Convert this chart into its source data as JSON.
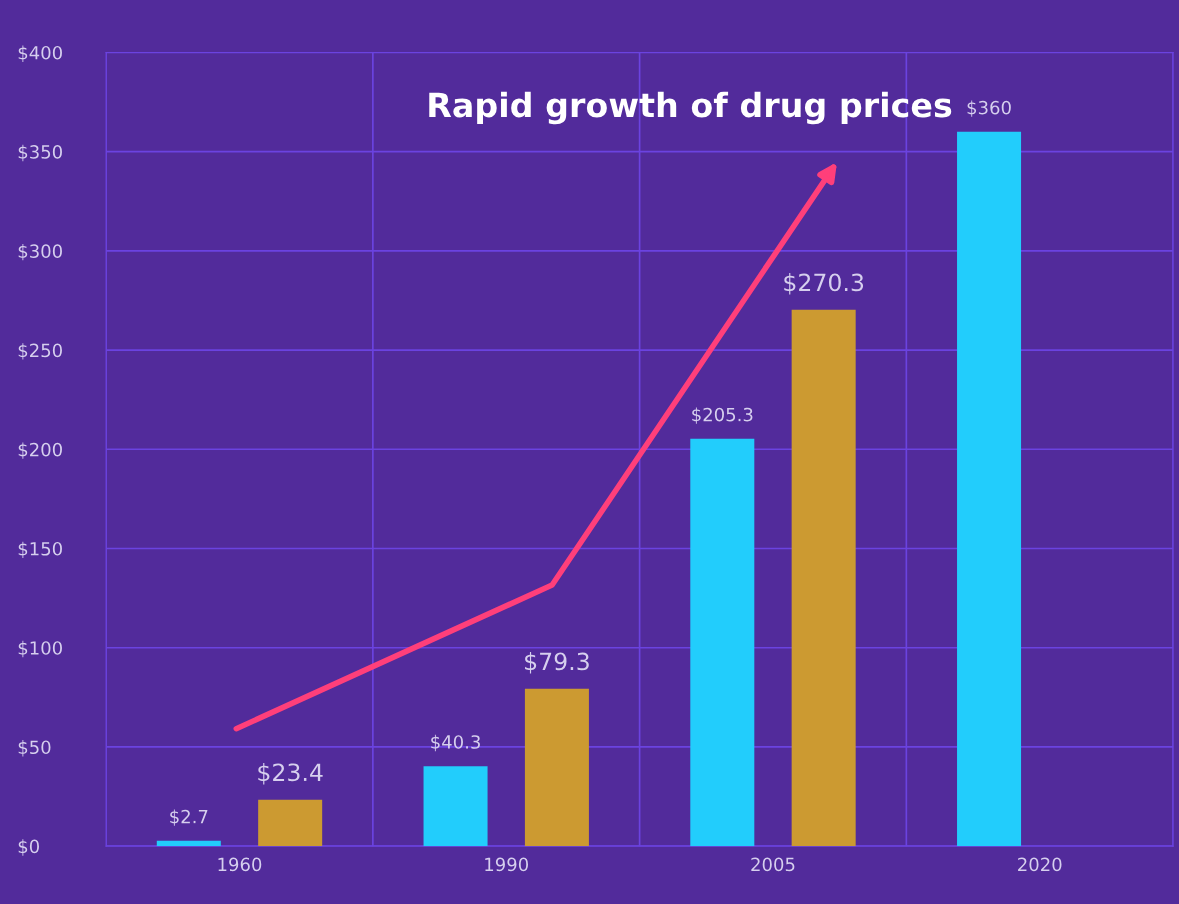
{
  "chart_data": {
    "type": "bar",
    "title": "Rapid growth of drug prices",
    "categories": [
      "1960",
      "1990",
      "2005",
      "2020"
    ],
    "series": [
      {
        "color": "#22cdfc",
        "values": [
          2.7,
          40.3,
          205.3,
          360
        ],
        "value_labels": [
          "$2.7",
          "$40.3",
          "$205.3",
          "$360"
        ]
      },
      {
        "color": "#cc9a31",
        "values": [
          23.4,
          79.3,
          270.3,
          null
        ],
        "value_labels": [
          "$23.4",
          "$79.3",
          "$270.3",
          null
        ]
      }
    ],
    "ylim": [
      0,
      400
    ],
    "yticks": [
      {
        "value": 0,
        "label": "$0"
      },
      {
        "value": 50,
        "label": "$50"
      },
      {
        "value": 100,
        "label": "$100"
      },
      {
        "value": 150,
        "label": "$150"
      },
      {
        "value": 200,
        "label": "$200"
      },
      {
        "value": 250,
        "label": "$250"
      },
      {
        "value": 300,
        "label": "$300"
      },
      {
        "value": 350,
        "label": "$350"
      },
      {
        "value": 400,
        "label": "$400"
      }
    ],
    "grid": true,
    "legend": false
  }
}
